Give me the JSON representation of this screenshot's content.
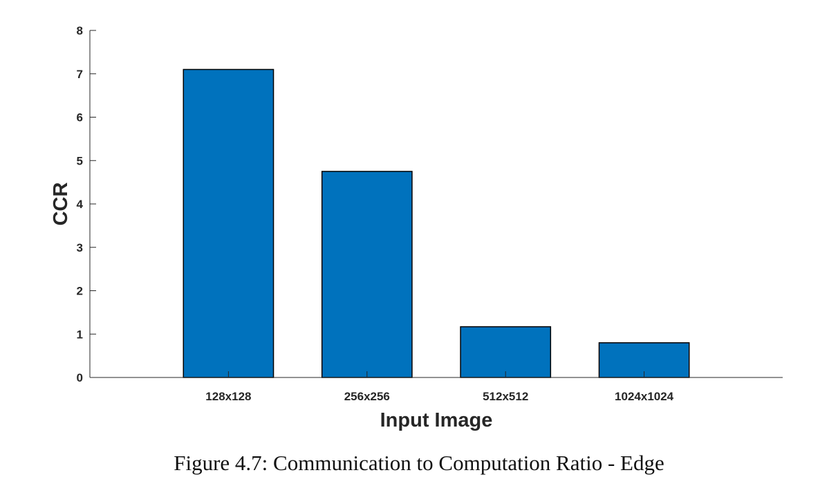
{
  "caption": "Figure 4.7: Communication to Computation Ratio - Edge",
  "chart_data": {
    "type": "bar",
    "categories": [
      "128x128",
      "256x256",
      "512x512",
      "1024x1024"
    ],
    "values": [
      7.1,
      4.75,
      1.17,
      0.8
    ],
    "xlabel": "Input Image",
    "ylabel": "CCR",
    "ylim": [
      0,
      8
    ],
    "yticks": [
      "0",
      "1",
      "2",
      "3",
      "4",
      "5",
      "6",
      "7",
      "8"
    ],
    "grid": false,
    "bar_color": "#0072BD",
    "bar_edge_color": "#000000",
    "axis_color": "#262626"
  }
}
